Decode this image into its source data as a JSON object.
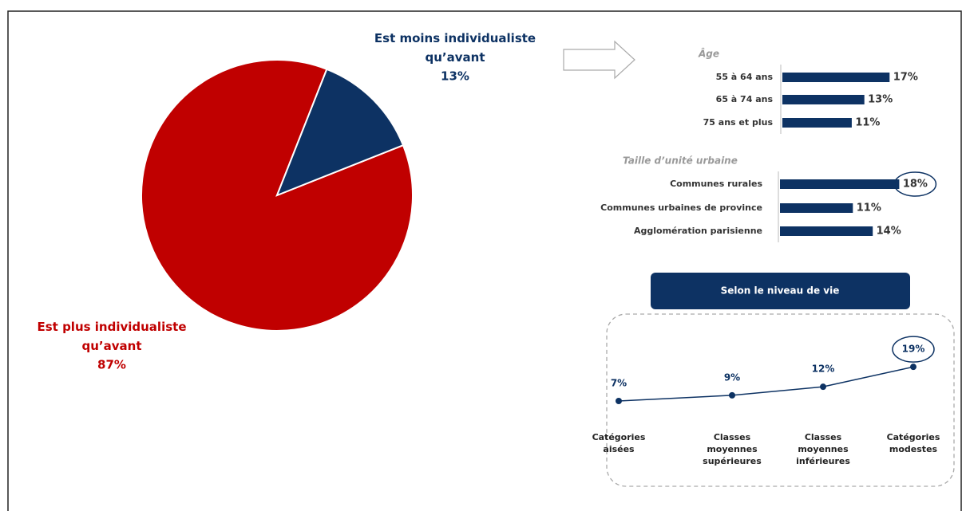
{
  "chart_data": [
    {
      "type": "pie",
      "categories": [
        "Est plus individualiste\nqu’avant",
        "Est moins individualiste\nqu’avant"
      ],
      "values": [
        87,
        13
      ],
      "value_labels": [
        "87%",
        "13%"
      ],
      "colors": [
        "#c00000",
        "#0d3263"
      ]
    },
    {
      "type": "hbar",
      "title": "Âge",
      "categories": [
        "55 à 64 ans",
        "65 à 74 ans",
        "75 ans et plus"
      ],
      "values": [
        17,
        13,
        11
      ],
      "value_labels": [
        "17%",
        "13%",
        "11%"
      ],
      "color": "#0d3263"
    },
    {
      "type": "hbar",
      "title": "Taille d’unité urbaine",
      "categories": [
        "Communes rurales",
        "Communes urbaines de province",
        "Agglomération parisienne"
      ],
      "values": [
        18,
        11,
        14
      ],
      "value_labels": [
        "18%",
        "11%",
        "14%"
      ],
      "color": "#0d3263",
      "highlight": 0
    },
    {
      "type": "line",
      "title": "Selon le niveau de vie",
      "categories": [
        "Catégories\naisées",
        "Classes\nmoyennes\nsupérieures",
        "Classes\nmoyennes\ninférieures",
        "Catégories\nmodestes"
      ],
      "values": [
        7,
        9,
        12,
        19
      ],
      "value_labels": [
        "7%",
        "9%",
        "12%",
        "19%"
      ],
      "color": "#0d3263",
      "highlight": 3
    }
  ]
}
